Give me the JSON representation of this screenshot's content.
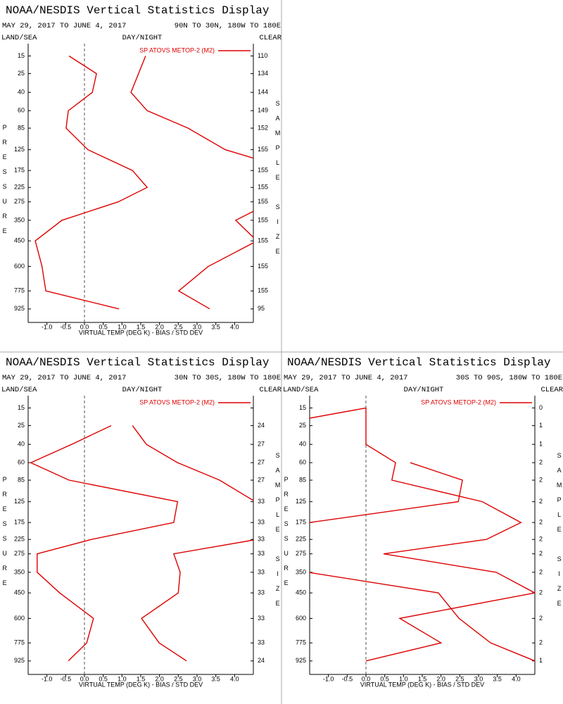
{
  "chart_data": [
    {
      "type": "line",
      "title": "NOAA/NESDIS Vertical Statistics Display",
      "date_range": "MAY 29, 2017 TO JUNE 4, 2017",
      "region": "90N TO 30N, 180W TO 180E",
      "labels": {
        "left": "LAND/SEA",
        "center": "DAY/NIGHT",
        "right": "CLEAR"
      },
      "ylabel": "PRESSURE",
      "y2label": "SAMPLE SIZE",
      "xlabel": "VIRTUAL TEMP (DEG K) - BIAS / STD DEV",
      "y": [
        15,
        25,
        40,
        60,
        85,
        125,
        175,
        225,
        275,
        350,
        450,
        600,
        775,
        925
      ],
      "sample_size": [
        110,
        134,
        144,
        149,
        152,
        155,
        155,
        155,
        155,
        155,
        155,
        155,
        155,
        95
      ],
      "series": [
        {
          "name": "SP ATOVS METOP-2 (M2)",
          "color": "#dd0000",
          "bias": [
            -0.41,
            0.32,
            0.21,
            -0.43,
            -0.49,
            0.09,
            1.28,
            1.67,
            0.9,
            -0.6,
            -1.31,
            -1.13,
            -1.03,
            0.92
          ],
          "std_dev": [
            1.63,
            1.44,
            1.24,
            1.67,
            2.76,
            3.75,
            5.6,
            6.0,
            5.0,
            4.03,
            4.6,
            3.3,
            2.51,
            3.34
          ]
        }
      ],
      "xlim": [
        -1.5,
        4.5
      ],
      "ylim": [
        1050,
        10
      ],
      "y_exponent": 0.286,
      "zero_line": true,
      "xticks": [
        {
          "value": -1,
          "label": "-1.0"
        },
        -0.5,
        {
          "value": 0,
          "label": "0.0"
        },
        0.5,
        {
          "value": 1,
          "label": "1.0"
        },
        1.5,
        {
          "value": 2,
          "label": "2.0"
        },
        2.5,
        {
          "value": 3,
          "label": "3.0"
        },
        3.5,
        {
          "value": 4,
          "label": "4.0"
        }
      ]
    },
    {
      "type": "line",
      "title": "NOAA/NESDIS Vertical Statistics Display",
      "date_range": "MAY 29, 2017 TO JUNE 4, 2017",
      "region": "30N TO 30S, 180W TO 180E",
      "labels": {
        "left": "LAND/SEA",
        "center": "DAY/NIGHT",
        "right": "CLEAR"
      },
      "ylabel": "PRESSURE",
      "y2label": "SAMPLE SIZE",
      "xlabel": "VIRTUAL TEMP (DEG K) - BIAS / STD DEV",
      "y": [
        15,
        25,
        40,
        60,
        85,
        125,
        175,
        225,
        275,
        350,
        450,
        600,
        775,
        925
      ],
      "sample_size": [
        null,
        24,
        27,
        27,
        27,
        33,
        33,
        33,
        33,
        33,
        33,
        33,
        33,
        24
      ],
      "series": [
        {
          "name": "SP ATOVS METOP-2 (M2)",
          "color": "#dd0000",
          "bias": [
            null,
            0.71,
            -0.34,
            -1.43,
            -0.41,
            2.48,
            2.38,
            0.19,
            -1.26,
            -1.26,
            -0.66,
            0.24,
            0.06,
            -0.43
          ],
          "std_dev": [
            null,
            1.28,
            1.65,
            2.48,
            3.6,
            4.55,
            5.3,
            4.6,
            2.38,
            2.55,
            2.5,
            1.52,
            1.99,
            2.72
          ]
        }
      ],
      "xlim": [
        -1.5,
        4.5
      ],
      "ylim": [
        1050,
        10
      ],
      "y_exponent": 0.286,
      "zero_line": true,
      "xticks": [
        {
          "value": -1,
          "label": "-1.0"
        },
        -0.5,
        {
          "value": 0,
          "label": "0.0"
        },
        0.5,
        {
          "value": 1,
          "label": "1.0"
        },
        1.5,
        {
          "value": 2,
          "label": "2.0"
        },
        2.5,
        {
          "value": 3,
          "label": "3.0"
        },
        3.5,
        {
          "value": 4,
          "label": "4.0"
        }
      ]
    },
    {
      "type": "line",
      "title": "NOAA/NESDIS Vertical Statistics Display",
      "date_range": "MAY 29, 2017 TO JUNE 4, 2017",
      "region": "30S TO 90S, 180W TO 180E",
      "labels": {
        "left": "LAND/SEA",
        "center": "DAY/NIGHT",
        "right": "CLEAR"
      },
      "ylabel": "PRESSURE",
      "y2label": "SAMPLE SIZE",
      "xlabel": "VIRTUAL TEMP (DEG K) - BIAS / STD DEV",
      "y": [
        15,
        25,
        40,
        60,
        85,
        125,
        175,
        225,
        275,
        350,
        450,
        600,
        775,
        925
      ],
      "sample_size": [
        0,
        1,
        1,
        2,
        2,
        2,
        2,
        2,
        2,
        2,
        2,
        2,
        2,
        1
      ],
      "series": [
        {
          "name": "SP ATOVS METOP-2 (M2)",
          "color": "#dd0000",
          "bias": [
            0,
            -2.6,
            null,
            1.18,
            2.57,
            2.46,
            -1.5,
            null,
            null,
            -1.55,
            1.93,
            2.48,
            3.32,
            4.5
          ],
          "std_dev": [
            0,
            0,
            0,
            0.79,
            0.69,
            3.1,
            4.13,
            3.21,
            0.47,
            3.47,
            4.5,
            0.9,
            2.0,
            0
          ]
        }
      ],
      "xlim": [
        -1.5,
        4.5
      ],
      "ylim": [
        1050,
        10
      ],
      "y_exponent": 0.286,
      "zero_line": true,
      "xticks": [
        {
          "value": -1,
          "label": "-1.0"
        },
        -0.5,
        {
          "value": 0,
          "label": "0.0"
        },
        0.5,
        {
          "value": 1,
          "label": "1.0"
        },
        1.5,
        {
          "value": 2,
          "label": "2.0"
        },
        2.5,
        {
          "value": 3,
          "label": "3.0"
        },
        3.5,
        {
          "value": 4,
          "label": "4.0"
        }
      ]
    }
  ]
}
